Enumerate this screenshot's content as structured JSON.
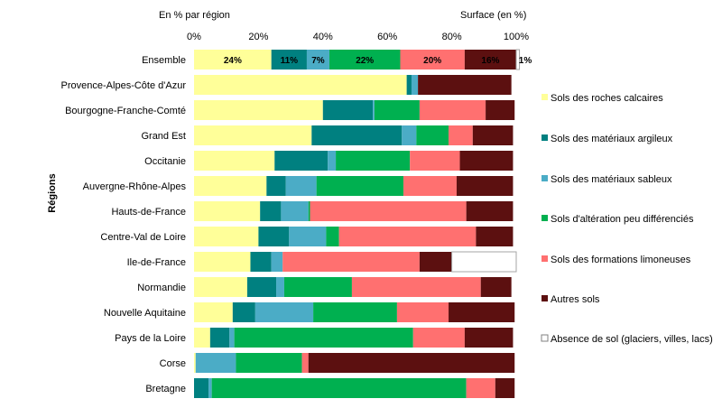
{
  "chart_data": {
    "type": "bar",
    "orientation": "horizontal",
    "stacked": true,
    "header_left": "En % par région",
    "header_right": "Surface (en %)",
    "ylabel": "Régions",
    "xlim": [
      0,
      100
    ],
    "x_ticks": [
      "0%",
      "20%",
      "40%",
      "60%",
      "80%",
      "100%"
    ],
    "grid": false,
    "legend_position": "right",
    "categories": [
      "Ensemble",
      "Provence-Alpes-Côte d'Azur",
      "Bourgogne-Franche-Comté",
      "Grand Est",
      "Occitanie",
      "Auvergne-Rhône-Alpes",
      "Hauts-de-France",
      "Centre-Val de Loire",
      "Ile-de-France",
      "Normandie",
      "Nouvelle Aquitaine",
      "Pays de la Loire",
      "Corse",
      "Bretagne"
    ],
    "series": [
      {
        "name": "Sols des roches calcaires",
        "color": "#ffff99",
        "values": [
          24,
          66,
          40,
          36.5,
          25,
          22.5,
          20.5,
          20,
          17.5,
          16.5,
          12,
          5,
          0.5,
          0
        ]
      },
      {
        "name": "Sols des matériaux argileux",
        "color": "#008080",
        "values": [
          11,
          1.5,
          15.5,
          28,
          16.5,
          6,
          6.5,
          9.5,
          6.5,
          9,
          7,
          6,
          0,
          4.5
        ]
      },
      {
        "name": "Sols des matériaux sableux",
        "color": "#4bacc6",
        "values": [
          7,
          2,
          0.5,
          4.5,
          2.5,
          9.5,
          8.5,
          11.5,
          3.5,
          2.5,
          18,
          1.5,
          12.5,
          1
        ]
      },
      {
        "name": "Sols d'altération peu différenciés",
        "color": "#00b050",
        "values": [
          22,
          0,
          14,
          10,
          23,
          27,
          0.5,
          4,
          0,
          21,
          26,
          55.5,
          20.5,
          79
        ]
      },
      {
        "name": "Sols des formations limoneuses",
        "color": "#ff7070",
        "values": [
          20,
          0,
          20.5,
          7.5,
          15.5,
          16.5,
          48.5,
          42.5,
          42.5,
          40,
          16,
          16,
          2,
          9
        ]
      },
      {
        "name": "Autres sols",
        "color": "#5c1010",
        "values": [
          16,
          29,
          9,
          12.5,
          16.5,
          17.5,
          14.5,
          11.5,
          10,
          9.5,
          20.5,
          15,
          64,
          6
        ]
      },
      {
        "name": "Absence de sol (glaciers, villes, lacs)",
        "color": "#ffffff",
        "values": [
          1,
          0,
          0,
          0,
          0,
          0,
          0,
          0,
          20,
          0,
          0,
          0,
          0,
          0
        ]
      }
    ],
    "data_labels_row": "Ensemble",
    "data_labels": [
      "24%",
      "11%",
      "7%",
      "22%",
      "20%",
      "16%",
      "1%"
    ]
  }
}
